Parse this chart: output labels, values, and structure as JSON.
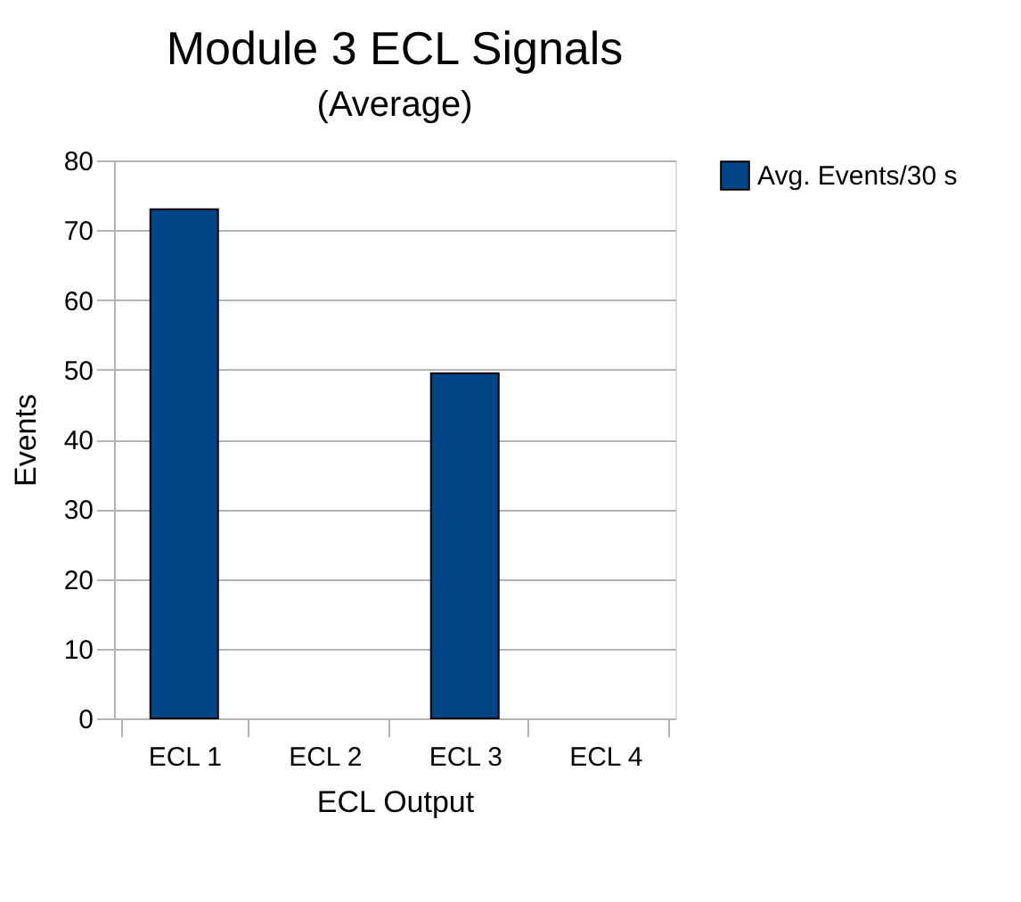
{
  "chart_data": {
    "type": "bar",
    "title": "Module 3 ECL Signals",
    "subtitle": "(Average)",
    "xlabel": "ECL Output",
    "ylabel": "Events",
    "categories": [
      "ECL 1",
      "ECL 2",
      "ECL 3",
      "ECL 4"
    ],
    "series": [
      {
        "name": "Avg. Events/30 s",
        "color": "#004586",
        "values": [
          73,
          null,
          49.5,
          null
        ]
      }
    ],
    "ylim": [
      0,
      80
    ],
    "yticks": [
      0,
      10,
      20,
      30,
      40,
      50,
      60,
      70,
      80
    ],
    "grid": "y",
    "legend": "right"
  }
}
